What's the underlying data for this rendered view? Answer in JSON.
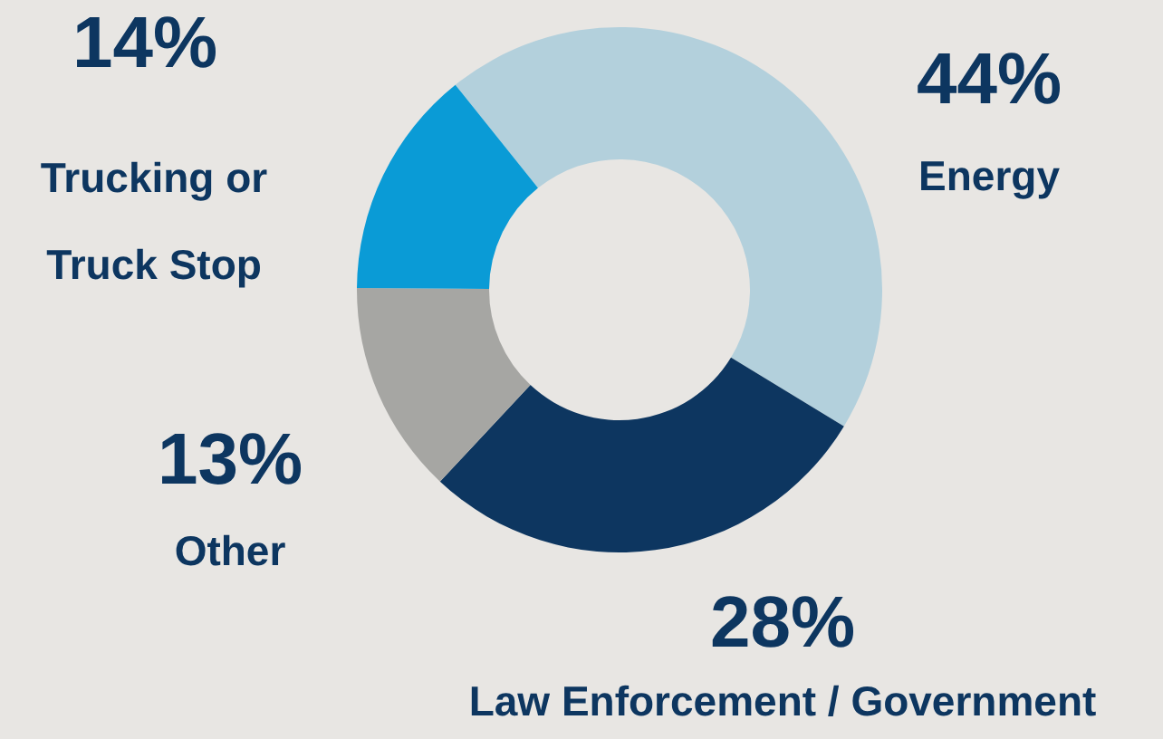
{
  "chart_data": {
    "type": "donut",
    "categories": [
      "Energy",
      "Law Enforcement / Government",
      "Other",
      "Trucking or\nTruck Stop"
    ],
    "values": [
      44,
      28,
      13,
      14
    ],
    "value_labels": [
      "44%",
      "28%",
      "13%",
      "14%"
    ],
    "colors": [
      "#b3d0dc",
      "#0d3660",
      "#a6a6a3",
      "#0a9bd6"
    ]
  }
}
